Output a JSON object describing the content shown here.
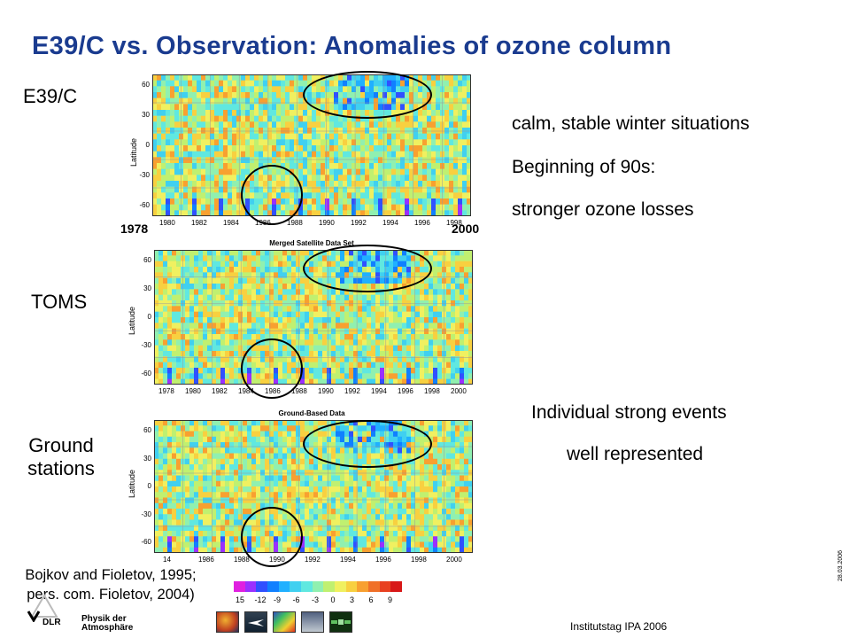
{
  "title": "E39/C vs. Observation: Anomalies of ozone column",
  "labels": {
    "model": "E39/C",
    "toms": "TOMS",
    "ground_line1": "Ground",
    "ground_line2": "stations"
  },
  "notes": {
    "line1": "calm, stable winter situations",
    "line2": "Beginning of 90s:",
    "line3": "stronger ozone losses",
    "events1": "Individual strong events",
    "events2": "well represented"
  },
  "plots": {
    "panel1": {
      "title": "",
      "ylabel": "Latitude",
      "yticks": [
        "60",
        "30",
        "0",
        "-30",
        "-60"
      ],
      "xticks": [
        "1980",
        "1982",
        "1984",
        "1986",
        "1988",
        "1990",
        "1992",
        "1994",
        "1996",
        "1998"
      ],
      "start_year": "1978",
      "end_year": "2000"
    },
    "panel2": {
      "title": "Merged Satellite Data Set",
      "ylabel": "Latitude",
      "yticks": [
        "60",
        "30",
        "0",
        "-30",
        "-60"
      ],
      "xticks": [
        "1978",
        "1980",
        "1982",
        "1984",
        "1986",
        "1988",
        "1990",
        "1992",
        "1994",
        "1996",
        "1998",
        "2000"
      ]
    },
    "panel3": {
      "title": "Ground-Based Data",
      "ylabel": "Latitude",
      "yticks": [
        "60",
        "30",
        "0",
        "-30",
        "-60"
      ],
      "xticks": [
        "14",
        "1986",
        "1988",
        "1990",
        "1992",
        "1994",
        "1996",
        "1998",
        "2000"
      ]
    }
  },
  "colorbar": {
    "ticks": [
      "15",
      "-12",
      "-9",
      "-6",
      "-3",
      "0",
      "3",
      "6",
      "9"
    ],
    "colors": [
      "#e020e0",
      "#9a30ff",
      "#3050ff",
      "#1080ff",
      "#20b0ff",
      "#40d0f0",
      "#60e8e0",
      "#90f0b0",
      "#c0f070",
      "#f0f060",
      "#f8d040",
      "#f8a030",
      "#f07028",
      "#e84020",
      "#d81818"
    ]
  },
  "citation": {
    "line1": "Bojkov and Fioletov, 1995;",
    "line2": "pers. com. Fioletov, 2004)"
  },
  "footer": {
    "org_line1": "Physik der",
    "org_line2": "Atmosphäre",
    "dlr": "DLR",
    "event": "Institutstag IPA 2006",
    "date": "28.03.2006"
  }
}
